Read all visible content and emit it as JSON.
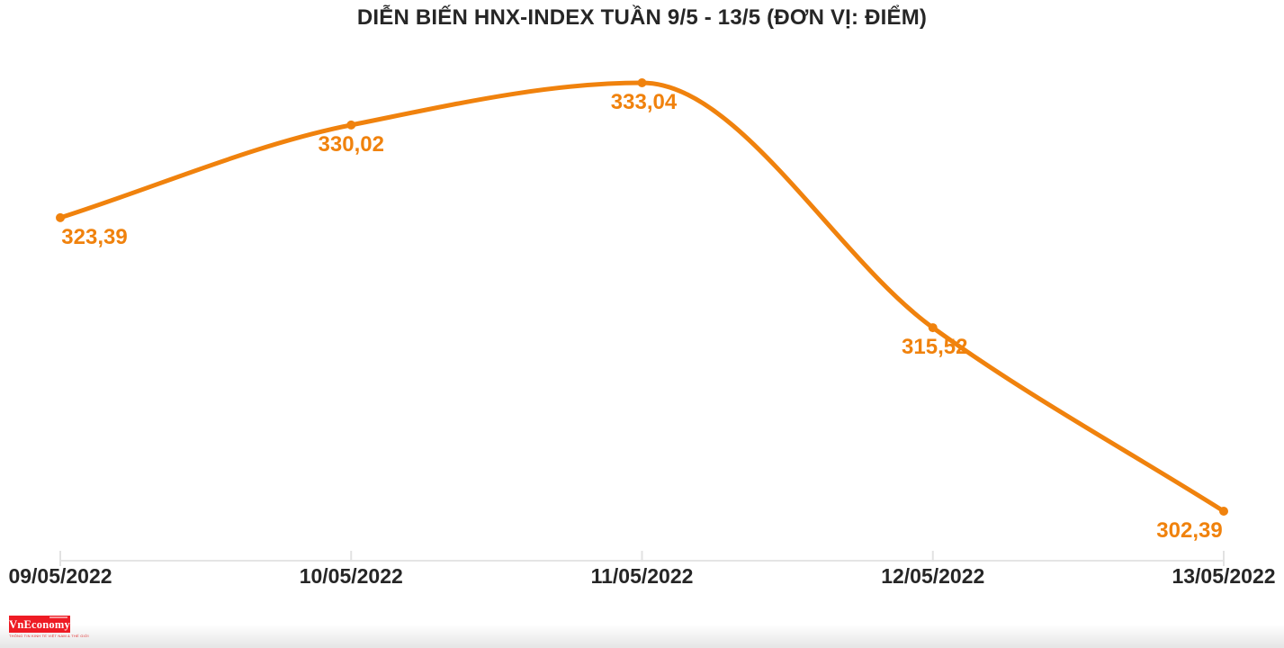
{
  "chart_data": {
    "type": "line",
    "title": "DIỄN BIẾN HNX-INDEX TUẦN 9/5 - 13/5 (ĐƠN VỊ: ĐIỂM)",
    "categories": [
      "09/05/2022",
      "10/05/2022",
      "11/05/2022",
      "12/05/2022",
      "13/05/2022"
    ],
    "values": [
      323.39,
      330.02,
      333.04,
      315.52,
      302.39
    ],
    "point_labels": [
      "323,39",
      "330,02",
      "333,04",
      "315,52",
      "302,39"
    ],
    "xlabel": "",
    "ylabel": "",
    "ylim": [
      302.39,
      333.04
    ],
    "grid": false,
    "legend": false,
    "line_color": "#f0820d",
    "point_label_color": "#f0820d",
    "axis_color": "#e5e5e5",
    "tick_color": "#e2e2e2",
    "text_color": "#262626"
  },
  "footer": {
    "logo_text": "VnEconomy",
    "logo_tagline": "THÔNG TIN KINH TẾ VIỆT NAM & THẾ GIỚI"
  }
}
